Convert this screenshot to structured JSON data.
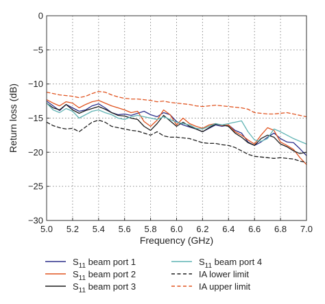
{
  "chart_data": {
    "type": "line",
    "xlabel": "Frequency (GHz)",
    "ylabel": "Return loss (dB)",
    "xlim": [
      5.0,
      7.0
    ],
    "ylim": [
      -30,
      0
    ],
    "xticks": [
      "5.0",
      "5.2",
      "5.4",
      "5.6",
      "5.8",
      "6.0",
      "6.2",
      "6.4",
      "6.6",
      "6.8",
      "7.0"
    ],
    "yticks": [
      "0",
      "−5",
      "−10",
      "−15",
      "−20",
      "−25",
      "−30"
    ],
    "grid": "dotted",
    "legend_placement": "bottom",
    "series": [
      {
        "name": "S11 beam port 1",
        "legend_main": "S",
        "legend_sub": "11",
        "legend_rest": " beam port 1",
        "color": "#2b2f8a",
        "dash": "solid",
        "x": [
          5.0,
          5.05,
          5.1,
          5.15,
          5.2,
          5.25,
          5.3,
          5.35,
          5.4,
          5.45,
          5.5,
          5.55,
          5.6,
          5.65,
          5.7,
          5.75,
          5.8,
          5.85,
          5.9,
          5.95,
          6.0,
          6.05,
          6.1,
          6.15,
          6.2,
          6.25,
          6.3,
          6.35,
          6.4,
          6.45,
          6.5,
          6.55,
          6.6,
          6.65,
          6.7,
          6.75,
          6.8,
          6.85,
          6.9,
          6.95,
          7.0
        ],
        "y": [
          -12.5,
          -13.2,
          -13.9,
          -13.0,
          -13.5,
          -14.0,
          -13.8,
          -13.2,
          -12.9,
          -13.5,
          -14.2,
          -14.5,
          -14.4,
          -14.6,
          -14.3,
          -14.0,
          -14.5,
          -14.8,
          -14.2,
          -14.5,
          -15.5,
          -16.0,
          -16.3,
          -16.6,
          -17.0,
          -16.5,
          -16.0,
          -16.2,
          -16.0,
          -16.8,
          -17.2,
          -18.5,
          -19.0,
          -18.5,
          -17.8,
          -17.2,
          -18.0,
          -18.5,
          -18.6,
          -19.5,
          -20.5
        ]
      },
      {
        "name": "S11 beam port 2",
        "legend_main": "S",
        "legend_sub": "11",
        "legend_rest": " beam port 2",
        "color": "#e0531f",
        "dash": "solid",
        "x": [
          5.0,
          5.05,
          5.1,
          5.15,
          5.2,
          5.25,
          5.3,
          5.35,
          5.4,
          5.45,
          5.5,
          5.55,
          5.6,
          5.65,
          5.7,
          5.75,
          5.8,
          5.85,
          5.9,
          5.95,
          6.0,
          6.05,
          6.1,
          6.15,
          6.2,
          6.25,
          6.3,
          6.35,
          6.4,
          6.45,
          6.5,
          6.55,
          6.6,
          6.65,
          6.7,
          6.75,
          6.8,
          6.85,
          6.9,
          6.95,
          7.0
        ],
        "y": [
          -12.3,
          -12.8,
          -13.2,
          -12.6,
          -12.8,
          -13.5,
          -13.0,
          -12.6,
          -12.4,
          -12.8,
          -13.2,
          -13.5,
          -13.8,
          -14.2,
          -14.0,
          -15.5,
          -16.2,
          -15.3,
          -13.8,
          -14.5,
          -16.0,
          -15.0,
          -15.8,
          -16.2,
          -16.5,
          -16.0,
          -15.8,
          -16.1,
          -16.0,
          -17.0,
          -17.5,
          -18.2,
          -18.8,
          -17.5,
          -16.4,
          -16.8,
          -18.5,
          -19.0,
          -19.6,
          -20.8,
          -21.8
        ]
      },
      {
        "name": "S11 beam port 3",
        "legend_main": "S",
        "legend_sub": "11",
        "legend_rest": " beam port 3",
        "color": "#1c1c1c",
        "dash": "solid",
        "x": [
          5.0,
          5.05,
          5.1,
          5.15,
          5.2,
          5.25,
          5.3,
          5.35,
          5.4,
          5.45,
          5.5,
          5.55,
          5.6,
          5.65,
          5.7,
          5.75,
          5.8,
          5.85,
          5.9,
          5.95,
          6.0,
          6.05,
          6.1,
          6.15,
          6.2,
          6.25,
          6.3,
          6.35,
          6.4,
          6.45,
          6.5,
          6.55,
          6.6,
          6.65,
          6.7,
          6.75,
          6.8,
          6.85,
          6.9,
          6.95,
          7.0
        ],
        "y": [
          -12.8,
          -13.5,
          -13.8,
          -13.0,
          -13.8,
          -14.3,
          -13.9,
          -13.6,
          -13.3,
          -13.7,
          -14.2,
          -14.6,
          -14.7,
          -15.0,
          -15.2,
          -16.2,
          -16.8,
          -15.8,
          -14.6,
          -15.4,
          -16.2,
          -15.6,
          -16.2,
          -16.6,
          -17.0,
          -16.4,
          -15.9,
          -16.0,
          -16.2,
          -17.2,
          -17.8,
          -18.6,
          -19.0,
          -18.0,
          -17.5,
          -17.8,
          -18.8,
          -19.2,
          -19.8,
          -20.2,
          -20.0
        ]
      },
      {
        "name": "S11 beam port 4",
        "legend_main": "S",
        "legend_sub": "11",
        "legend_rest": " beam port 4",
        "color": "#5fb3b3",
        "dash": "solid",
        "x": [
          5.0,
          5.05,
          5.1,
          5.15,
          5.2,
          5.25,
          5.3,
          5.35,
          5.4,
          5.45,
          5.5,
          5.55,
          5.6,
          5.65,
          5.7,
          5.75,
          5.8,
          5.85,
          5.9,
          5.95,
          6.0,
          6.05,
          6.1,
          6.15,
          6.2,
          6.25,
          6.3,
          6.35,
          6.4,
          6.45,
          6.5,
          6.55,
          6.6,
          6.65,
          6.7,
          6.75,
          6.8,
          6.85,
          6.9,
          6.95,
          7.0
        ],
        "y": [
          -12.8,
          -13.8,
          -14.2,
          -13.6,
          -14.0,
          -15.0,
          -14.5,
          -14.0,
          -13.8,
          -14.2,
          -14.5,
          -15.0,
          -15.2,
          -14.8,
          -14.6,
          -14.8,
          -15.0,
          -15.2,
          -14.8,
          -15.2,
          -15.6,
          -15.8,
          -16.0,
          -16.5,
          -16.6,
          -16.2,
          -15.8,
          -16.0,
          -15.8,
          -15.6,
          -15.4,
          -17.0,
          -18.2,
          -18.4,
          -18.0,
          -16.6,
          -17.0,
          -17.5,
          -18.0,
          -18.4,
          -18.8
        ]
      },
      {
        "name": "IA lower limit",
        "legend_main": "IA lower limit",
        "legend_sub": "",
        "legend_rest": "",
        "color": "#1c1c1c",
        "dash": "dashed",
        "x": [
          5.0,
          5.05,
          5.1,
          5.15,
          5.2,
          5.25,
          5.3,
          5.35,
          5.4,
          5.45,
          5.5,
          5.55,
          5.6,
          5.65,
          5.7,
          5.75,
          5.8,
          5.85,
          5.9,
          5.95,
          6.0,
          6.05,
          6.1,
          6.15,
          6.2,
          6.25,
          6.3,
          6.35,
          6.4,
          6.45,
          6.5,
          6.55,
          6.6,
          6.65,
          6.7,
          6.75,
          6.8,
          6.85,
          6.9,
          6.95,
          7.0
        ],
        "y": [
          -15.6,
          -16.1,
          -16.4,
          -16.6,
          -16.5,
          -17.0,
          -16.3,
          -15.6,
          -15.3,
          -15.6,
          -16.2,
          -16.4,
          -16.6,
          -16.8,
          -16.9,
          -17.2,
          -17.5,
          -17.0,
          -17.6,
          -17.8,
          -17.8,
          -17.9,
          -18.0,
          -18.3,
          -18.6,
          -18.7,
          -18.7,
          -18.9,
          -19.0,
          -19.3,
          -19.8,
          -20.3,
          -20.6,
          -20.7,
          -20.8,
          -20.9,
          -20.8,
          -20.9,
          -21.0,
          -21.3,
          -21.5
        ]
      },
      {
        "name": "IA upper limit",
        "legend_main": "IA upper limit",
        "legend_sub": "",
        "legend_rest": "",
        "color": "#e0531f",
        "dash": "dashed",
        "x": [
          5.0,
          5.05,
          5.1,
          5.15,
          5.2,
          5.25,
          5.3,
          5.35,
          5.4,
          5.45,
          5.5,
          5.55,
          5.6,
          5.65,
          5.7,
          5.75,
          5.8,
          5.85,
          5.9,
          5.95,
          6.0,
          6.05,
          6.1,
          6.15,
          6.2,
          6.25,
          6.3,
          6.35,
          6.4,
          6.45,
          6.5,
          6.55,
          6.6,
          6.65,
          6.7,
          6.75,
          6.8,
          6.85,
          6.9,
          6.95,
          7.0
        ],
        "y": [
          -11.2,
          -11.4,
          -11.6,
          -11.7,
          -11.8,
          -12.0,
          -11.8,
          -11.4,
          -11.1,
          -11.2,
          -11.6,
          -11.9,
          -12.1,
          -12.2,
          -12.2,
          -12.3,
          -12.4,
          -12.6,
          -12.5,
          -12.7,
          -12.8,
          -12.9,
          -13.0,
          -13.2,
          -13.3,
          -13.2,
          -13.1,
          -13.2,
          -13.3,
          -13.4,
          -13.5,
          -13.7,
          -14.2,
          -14.3,
          -14.4,
          -14.4,
          -14.3,
          -14.2,
          -14.4,
          -14.6,
          -14.8
        ]
      }
    ]
  }
}
